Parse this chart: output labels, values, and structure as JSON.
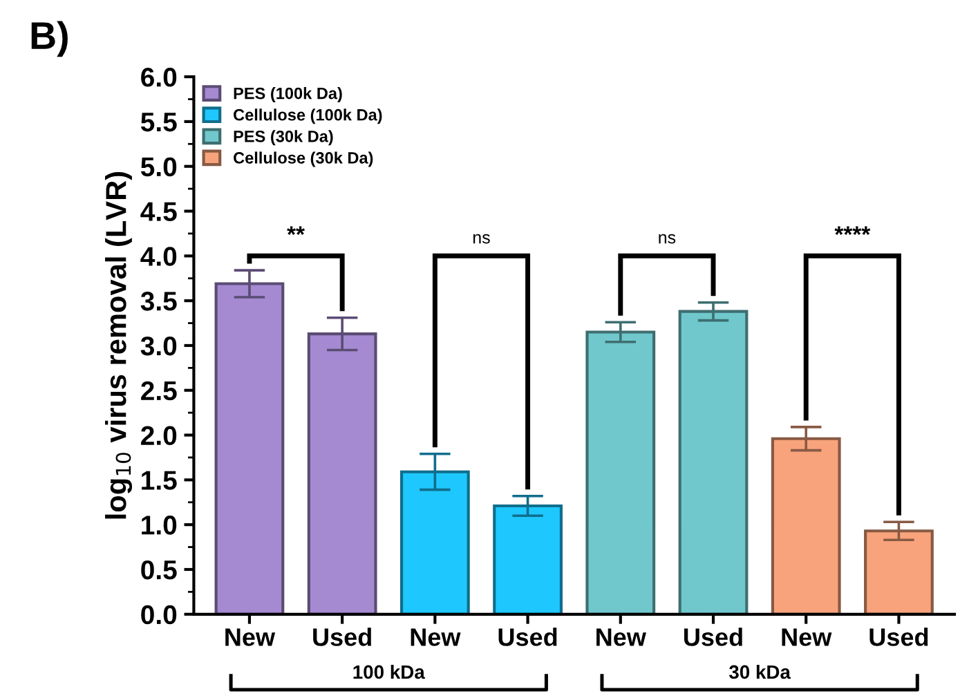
{
  "chart_data": {
    "type": "bar",
    "ylabel": "log$_{10}$ virus removal (LVR)",
    "categories": [
      "New",
      "Used",
      "New",
      "Used",
      "New",
      "Used",
      "New",
      "Used"
    ],
    "series": [
      {
        "name": "PES (100k Da)",
        "color": "#a58ad2",
        "values": [
          3.69,
          3.13,
          null,
          null,
          null,
          null,
          null,
          null
        ],
        "errors": [
          0.15,
          0.18,
          null,
          null,
          null,
          null,
          null,
          null
        ]
      },
      {
        "name": "Cellulose (100k Da)",
        "color": "#1ec8ff",
        "values": [
          null,
          null,
          1.59,
          1.21,
          null,
          null,
          null,
          null
        ],
        "errors": [
          null,
          null,
          0.2,
          0.11,
          null,
          null,
          null,
          null
        ]
      },
      {
        "name": "PES (30k Da)",
        "color": "#70c8cc",
        "values": [
          null,
          null,
          null,
          null,
          3.15,
          3.38,
          null,
          null
        ],
        "errors": [
          null,
          null,
          null,
          null,
          0.11,
          0.1,
          null,
          null
        ]
      },
      {
        "name": "Cellulose (30k Da)",
        "color": "#f8a37c",
        "values": [
          null,
          null,
          null,
          null,
          null,
          null,
          1.96,
          0.93
        ],
        "errors": [
          null,
          null,
          null,
          null,
          null,
          null,
          0.13,
          0.1
        ]
      }
    ],
    "ylim": [
      0,
      6
    ],
    "yticks": [
      {
        "value": 0,
        "label": "0.0"
      },
      0.5,
      {
        "value": 1,
        "label": "1.0"
      },
      1.5,
      {
        "value": 2,
        "label": "2.0"
      },
      2.5,
      {
        "value": 3,
        "label": "3.0"
      },
      3.5,
      {
        "value": 4,
        "label": "4.0"
      },
      4.5,
      {
        "value": 5,
        "label": "5.0"
      },
      5.5,
      {
        "value": 6,
        "label": "6.0"
      }
    ],
    "grid": false,
    "legend": "top left",
    "annotations": [
      "B)",
      "**",
      "ns",
      "ns",
      "****",
      "100 kDa",
      "30 kDa"
    ]
  }
}
